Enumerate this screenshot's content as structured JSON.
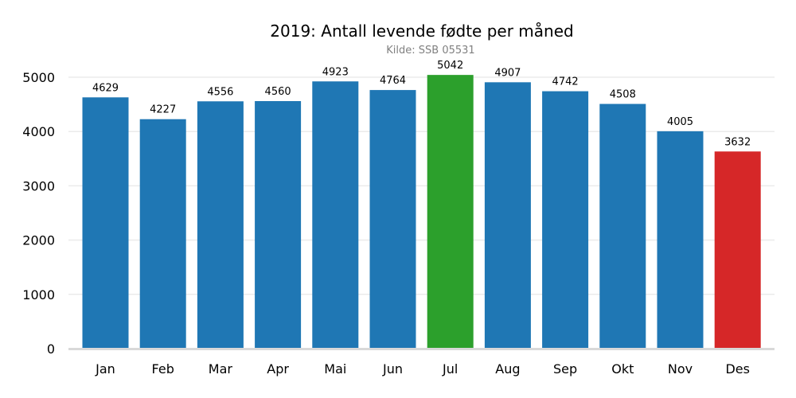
{
  "chart_data": {
    "type": "bar",
    "title": "2019: Antall levende fødte per måned",
    "subtitle": "Kilde: SSB 05531",
    "xlabel": "",
    "ylabel": "",
    "categories": [
      "Jan",
      "Feb",
      "Mar",
      "Apr",
      "Mai",
      "Jun",
      "Jul",
      "Aug",
      "Sep",
      "Okt",
      "Nov",
      "Des"
    ],
    "values": [
      4629,
      4227,
      4556,
      4560,
      4923,
      4764,
      5042,
      4907,
      4742,
      4508,
      4005,
      3632
    ],
    "ylim": [
      0,
      5000
    ],
    "yticks": [
      0,
      1000,
      2000,
      3000,
      4000,
      5000
    ],
    "grid": true,
    "colors": {
      "default": "#1f77b4",
      "max": "#2ca02c",
      "min": "#d62728",
      "grid": "#ebebeb",
      "axis": "#d9d9d9",
      "subtitle": "#808080"
    },
    "highlight": {
      "max": "Jul",
      "min": "Des"
    }
  }
}
